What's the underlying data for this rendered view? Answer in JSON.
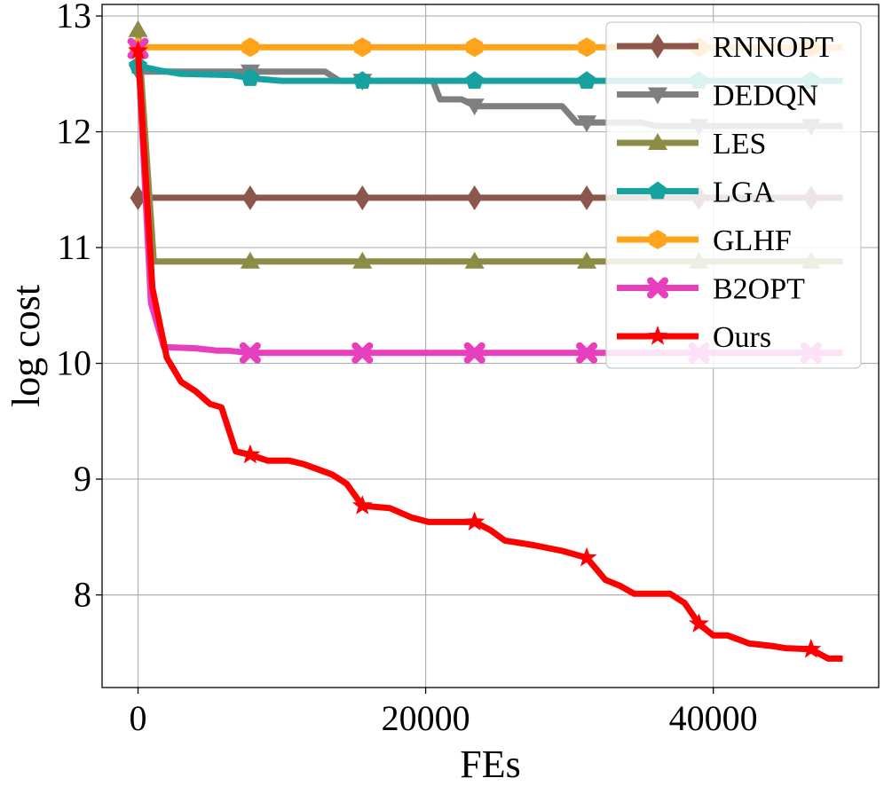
{
  "chart_data": {
    "type": "line",
    "title": "",
    "xlabel": "FEs",
    "ylabel": "log cost",
    "xlim": [
      -2500,
      51500
    ],
    "ylim": [
      7.2,
      13.1
    ],
    "xticks": [
      0,
      20000,
      40000
    ],
    "xtick_labels": [
      "0",
      "20000",
      "40000"
    ],
    "yticks": [
      8,
      9,
      10,
      11,
      12,
      13
    ],
    "ytick_labels": [
      "8",
      "9",
      "10",
      "11",
      "12",
      "13"
    ],
    "grid": true,
    "legend_position": "top-right",
    "series": [
      {
        "name": "RNNOPT",
        "color": "#8c564b",
        "marker": "diamond",
        "points": [
          [
            0,
            11.43
          ],
          [
            49000,
            11.43
          ]
        ],
        "marker_x": [
          0,
          7800,
          15600,
          23400,
          31200,
          39000,
          46800
        ]
      },
      {
        "name": "DEDQN",
        "color": "#7f7f7f",
        "marker": "triangle-down",
        "points": [
          [
            0,
            12.52
          ],
          [
            13000,
            12.52
          ],
          [
            14000,
            12.44
          ],
          [
            20500,
            12.44
          ],
          [
            21000,
            12.28
          ],
          [
            22500,
            12.28
          ],
          [
            23500,
            12.22
          ],
          [
            29500,
            12.22
          ],
          [
            30500,
            12.08
          ],
          [
            35000,
            12.08
          ],
          [
            36000,
            12.05
          ],
          [
            49000,
            12.05
          ]
        ],
        "marker_x": [
          0,
          7800,
          15600,
          23400,
          31200,
          39000,
          46800
        ]
      },
      {
        "name": "LES",
        "color": "#8c8c46",
        "marker": "triangle-up",
        "points": [
          [
            0,
            12.88
          ],
          [
            1100,
            10.88
          ],
          [
            49000,
            10.88
          ]
        ],
        "marker_x": [
          0,
          7800,
          15600,
          23400,
          31200,
          39000,
          46800
        ]
      },
      {
        "name": "LGA",
        "color": "#17a2a2",
        "marker": "pentagon",
        "points": [
          [
            0,
            12.57
          ],
          [
            1500,
            12.53
          ],
          [
            3000,
            12.5
          ],
          [
            6500,
            12.49
          ],
          [
            8000,
            12.46
          ],
          [
            10000,
            12.44
          ],
          [
            49000,
            12.44
          ]
        ],
        "marker_x": [
          0,
          7800,
          15600,
          23400,
          31200,
          39000,
          46800
        ]
      },
      {
        "name": "GLHF",
        "color": "#ffa31a",
        "marker": "hexagon",
        "points": [
          [
            0,
            12.73
          ],
          [
            49000,
            12.73
          ]
        ],
        "marker_x": [
          0,
          7800,
          15600,
          23400,
          31200,
          39000,
          46800
        ]
      },
      {
        "name": "B2OPT",
        "color": "#e83fbf",
        "marker": "x",
        "points": [
          [
            0,
            12.72
          ],
          [
            900,
            10.52
          ],
          [
            1800,
            10.14
          ],
          [
            4000,
            10.13
          ],
          [
            5500,
            10.11
          ],
          [
            6200,
            10.11
          ],
          [
            7800,
            10.09
          ],
          [
            49000,
            10.09
          ]
        ],
        "marker_x": [
          0,
          7800,
          15600,
          23400,
          31200,
          39000,
          46800
        ]
      },
      {
        "name": "Ours",
        "color": "#ff0000",
        "marker": "star",
        "points": [
          [
            0,
            12.7
          ],
          [
            1000,
            10.65
          ],
          [
            2000,
            10.05
          ],
          [
            3000,
            9.84
          ],
          [
            4000,
            9.76
          ],
          [
            5000,
            9.65
          ],
          [
            5800,
            9.62
          ],
          [
            6800,
            9.24
          ],
          [
            7800,
            9.21
          ],
          [
            9000,
            9.16
          ],
          [
            10500,
            9.16
          ],
          [
            11500,
            9.13
          ],
          [
            13500,
            9.04
          ],
          [
            14500,
            8.96
          ],
          [
            15600,
            8.77
          ],
          [
            17500,
            8.75
          ],
          [
            19000,
            8.67
          ],
          [
            20200,
            8.63
          ],
          [
            23400,
            8.63
          ],
          [
            24500,
            8.56
          ],
          [
            25500,
            8.47
          ],
          [
            27500,
            8.43
          ],
          [
            29500,
            8.38
          ],
          [
            31200,
            8.32
          ],
          [
            32500,
            8.13
          ],
          [
            33500,
            8.08
          ],
          [
            34500,
            8.01
          ],
          [
            37000,
            8.01
          ],
          [
            38000,
            7.93
          ],
          [
            39000,
            7.75
          ],
          [
            40000,
            7.65
          ],
          [
            41000,
            7.65
          ],
          [
            42500,
            7.58
          ],
          [
            44000,
            7.56
          ],
          [
            45000,
            7.54
          ],
          [
            46800,
            7.53
          ],
          [
            48000,
            7.45
          ],
          [
            49000,
            7.45
          ]
        ],
        "marker_x": [
          0,
          7800,
          15600,
          23400,
          31200,
          39000,
          46800
        ]
      }
    ]
  }
}
